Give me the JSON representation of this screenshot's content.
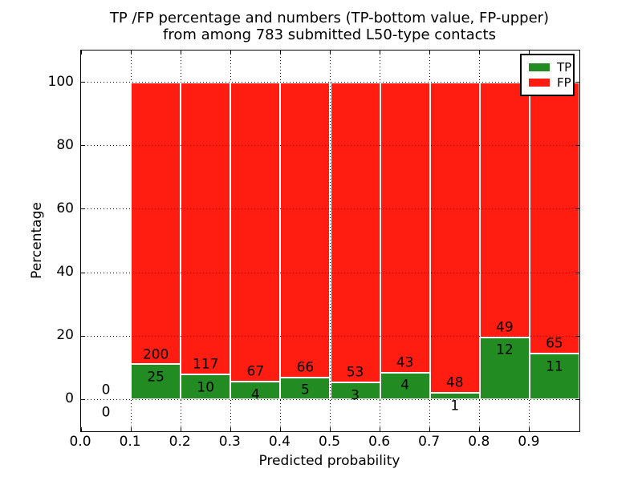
{
  "title": {
    "line1": "TP /FP percentage and numbers (TP-bottom value, FP-upper)",
    "line2": "from among 783 submitted L50-type contacts"
  },
  "axes": {
    "xlabel": "Predicted probability",
    "ylabel": "Percentage",
    "xticks": [
      "0.0",
      "0.1",
      "0.2",
      "0.3",
      "0.4",
      "0.5",
      "0.6",
      "0.7",
      "0.8",
      "0.9"
    ],
    "yticks": [
      "0",
      "20",
      "40",
      "60",
      "80",
      "100"
    ],
    "xlim": [
      0.0,
      1.0
    ],
    "ylim": [
      -10,
      110
    ]
  },
  "legend": {
    "position": "upper right",
    "items": [
      {
        "label": "TP",
        "color": "#228B22"
      },
      {
        "label": "FP",
        "color": "#FF1D12"
      }
    ]
  },
  "colors": {
    "tp": "#228B22",
    "fp": "#FF1D12",
    "background": "#FFFFFF",
    "text": "#000000",
    "grid": "#000000",
    "bar_edge": "#FFFFFF"
  },
  "chart_data": {
    "type": "bar",
    "stacked": true,
    "normalization": "each non-empty bin stacked to 100%",
    "title": "TP /FP percentage and numbers (TP-bottom value, FP-upper) from among 783 submitted L50-type contacts",
    "xlabel": "Predicted probability",
    "ylabel": "Percentage",
    "xlim": [
      0.0,
      1.0
    ],
    "ylim": [
      -10,
      110
    ],
    "grid": "dotted",
    "legend_position": "upper right",
    "bin_width": 0.1,
    "total_contacts": 783,
    "series_names": [
      "TP",
      "FP"
    ],
    "bins": [
      {
        "x_start": 0.0,
        "x_end": 0.1,
        "tp": 0,
        "fp": 0
      },
      {
        "x_start": 0.1,
        "x_end": 0.2,
        "tp": 25,
        "fp": 200
      },
      {
        "x_start": 0.2,
        "x_end": 0.3,
        "tp": 10,
        "fp": 117
      },
      {
        "x_start": 0.3,
        "x_end": 0.4,
        "tp": 4,
        "fp": 67
      },
      {
        "x_start": 0.4,
        "x_end": 0.5,
        "tp": 5,
        "fp": 66
      },
      {
        "x_start": 0.5,
        "x_end": 0.6,
        "tp": 3,
        "fp": 53
      },
      {
        "x_start": 0.6,
        "x_end": 0.7,
        "tp": 4,
        "fp": 43
      },
      {
        "x_start": 0.7,
        "x_end": 0.8,
        "tp": 1,
        "fp": 48
      },
      {
        "x_start": 0.8,
        "x_end": 0.9,
        "tp": 12,
        "fp": 49
      },
      {
        "x_start": 0.9,
        "x_end": 1.0,
        "tp": 11,
        "fp": 65
      }
    ]
  }
}
